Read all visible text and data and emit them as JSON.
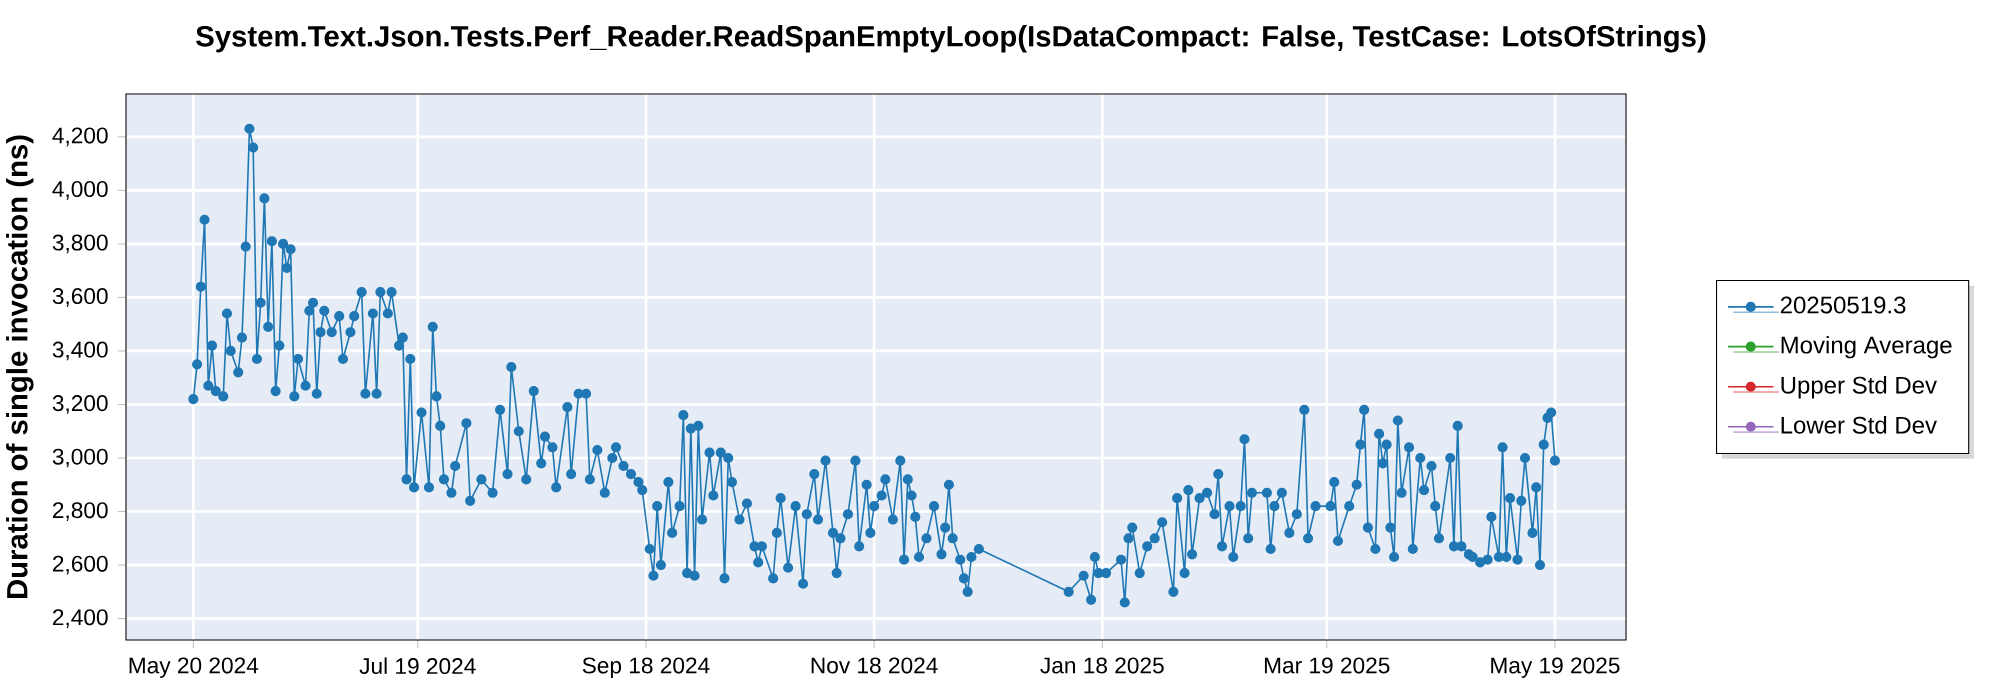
{
  "chart_data": {
    "type": "line",
    "title": "System.Text.Json.Tests.Perf_Reader.ReadSpanEmptyLoop(IsDataCompact: False, TestCase: LotsOfStrings)",
    "ylabel": "Duration of single invocation (ns)",
    "xlim": [
      "2024-05-02",
      "2025-06-07"
    ],
    "ylim": [
      2320,
      4360
    ],
    "xticks": [
      {
        "value": "2024-05-20",
        "label": "May 20 2024"
      },
      {
        "value": "2024-07-19",
        "label": "Jul 19 2024"
      },
      {
        "value": "2024-09-18",
        "label": "Sep 18 2024"
      },
      {
        "value": "2024-11-18",
        "label": "Nov 18 2024"
      },
      {
        "value": "2025-01-18",
        "label": "Jan 18 2025"
      },
      {
        "value": "2025-03-19",
        "label": "Mar 19 2025"
      },
      {
        "value": "2025-05-19",
        "label": "May 19 2025"
      }
    ],
    "yticks": [
      {
        "value": 2400,
        "label": "2,400"
      },
      {
        "value": 2600,
        "label": "2,600"
      },
      {
        "value": 2800,
        "label": "2,800"
      },
      {
        "value": 3000,
        "label": "3,000"
      },
      {
        "value": 3200,
        "label": "3,200"
      },
      {
        "value": 3400,
        "label": "3,400"
      },
      {
        "value": 3600,
        "label": "3,600"
      },
      {
        "value": 3800,
        "label": "3,800"
      },
      {
        "value": 4000,
        "label": "4,000"
      },
      {
        "value": 4200,
        "label": "4,200"
      }
    ],
    "grid": true,
    "legend": "right",
    "marker": "circle",
    "line_style": "solid",
    "series": [
      {
        "name": "20250519.3",
        "color": "#1f77b4",
        "x": [
          "2024-05-20",
          "2024-05-21",
          "2024-05-22",
          "2024-05-23",
          "2024-05-24",
          "2024-05-25",
          "2024-05-26",
          "2024-05-28",
          "2024-05-29",
          "2024-05-30",
          "2024-06-01",
          "2024-06-02",
          "2024-06-03",
          "2024-06-04",
          "2024-06-05",
          "2024-06-06",
          "2024-06-07",
          "2024-06-08",
          "2024-06-09",
          "2024-06-10",
          "2024-06-11",
          "2024-06-12",
          "2024-06-13",
          "2024-06-14",
          "2024-06-15",
          "2024-06-16",
          "2024-06-17",
          "2024-06-19",
          "2024-06-20",
          "2024-06-21",
          "2024-06-22",
          "2024-06-23",
          "2024-06-24",
          "2024-06-26",
          "2024-06-28",
          "2024-06-29",
          "2024-07-01",
          "2024-07-02",
          "2024-07-04",
          "2024-07-05",
          "2024-07-07",
          "2024-07-08",
          "2024-07-09",
          "2024-07-11",
          "2024-07-12",
          "2024-07-14",
          "2024-07-15",
          "2024-07-16",
          "2024-07-17",
          "2024-07-18",
          "2024-07-20",
          "2024-07-22",
          "2024-07-23",
          "2024-07-24",
          "2024-07-25",
          "2024-07-26",
          "2024-07-28",
          "2024-07-29",
          "2024-08-01",
          "2024-08-02",
          "2024-08-05",
          "2024-08-08",
          "2024-08-10",
          "2024-08-12",
          "2024-08-13",
          "2024-08-15",
          "2024-08-17",
          "2024-08-19",
          "2024-08-21",
          "2024-08-22",
          "2024-08-24",
          "2024-08-25",
          "2024-08-28",
          "2024-08-29",
          "2024-08-31",
          "2024-09-02",
          "2024-09-03",
          "2024-09-05",
          "2024-09-07",
          "2024-09-09",
          "2024-09-10",
          "2024-09-12",
          "2024-09-14",
          "2024-09-16",
          "2024-09-17",
          "2024-09-19",
          "2024-09-20",
          "2024-09-21",
          "2024-09-22",
          "2024-09-24",
          "2024-09-25",
          "2024-09-27",
          "2024-09-28",
          "2024-09-29",
          "2024-09-30",
          "2024-10-01",
          "2024-10-02",
          "2024-10-03",
          "2024-10-05",
          "2024-10-06",
          "2024-10-08",
          "2024-10-09",
          "2024-10-10",
          "2024-10-11",
          "2024-10-13",
          "2024-10-15",
          "2024-10-17",
          "2024-10-18",
          "2024-10-19",
          "2024-10-22",
          "2024-10-23",
          "2024-10-24",
          "2024-10-26",
          "2024-10-28",
          "2024-10-30",
          "2024-10-31",
          "2024-11-02",
          "2024-11-03",
          "2024-11-05",
          "2024-11-07",
          "2024-11-08",
          "2024-11-09",
          "2024-11-11",
          "2024-11-13",
          "2024-11-14",
          "2024-11-16",
          "2024-11-17",
          "2024-11-18",
          "2024-11-20",
          "2024-11-21",
          "2024-11-23",
          "2024-11-25",
          "2024-11-26",
          "2024-11-27",
          "2024-11-28",
          "2024-11-29",
          "2024-11-30",
          "2024-12-02",
          "2024-12-04",
          "2024-12-06",
          "2024-12-07",
          "2024-12-08",
          "2024-12-09",
          "2024-12-11",
          "2024-12-12",
          "2024-12-13",
          "2024-12-14",
          "2024-12-16",
          "2025-01-09",
          "2025-01-13",
          "2025-01-15",
          "2025-01-16",
          "2025-01-17",
          "2025-01-19",
          "2025-01-23",
          "2025-01-24",
          "2025-01-25",
          "2025-01-26",
          "2025-01-28",
          "2025-01-30",
          "2025-02-01",
          "2025-02-03",
          "2025-02-06",
          "2025-02-07",
          "2025-02-09",
          "2025-02-10",
          "2025-02-11",
          "2025-02-13",
          "2025-02-15",
          "2025-02-17",
          "2025-02-18",
          "2025-02-19",
          "2025-02-21",
          "2025-02-22",
          "2025-02-24",
          "2025-02-25",
          "2025-02-26",
          "2025-02-27",
          "2025-03-03",
          "2025-03-04",
          "2025-03-05",
          "2025-03-07",
          "2025-03-09",
          "2025-03-11",
          "2025-03-13",
          "2025-03-14",
          "2025-03-16",
          "2025-03-20",
          "2025-03-21",
          "2025-03-22",
          "2025-03-25",
          "2025-03-27",
          "2025-03-28",
          "2025-03-29",
          "2025-03-30",
          "2025-04-01",
          "2025-04-02",
          "2025-04-03",
          "2025-04-04",
          "2025-04-05",
          "2025-04-06",
          "2025-04-07",
          "2025-04-08",
          "2025-04-10",
          "2025-04-11",
          "2025-04-13",
          "2025-04-14",
          "2025-04-16",
          "2025-04-17",
          "2025-04-18",
          "2025-04-21",
          "2025-04-22",
          "2025-04-23",
          "2025-04-24",
          "2025-04-26",
          "2025-04-27",
          "2025-04-29",
          "2025-05-01",
          "2025-05-02",
          "2025-05-04",
          "2025-05-05",
          "2025-05-06",
          "2025-05-07",
          "2025-05-09",
          "2025-05-10",
          "2025-05-11",
          "2025-05-13",
          "2025-05-14",
          "2025-05-15",
          "2025-05-16",
          "2025-05-17",
          "2025-05-18",
          "2025-05-19"
        ],
        "values": [
          3220,
          3350,
          3640,
          3890,
          3270,
          3420,
          3250,
          3230,
          3540,
          3400,
          3320,
          3450,
          3790,
          4230,
          4160,
          3370,
          3580,
          3970,
          3490,
          3810,
          3250,
          3420,
          3800,
          3710,
          3780,
          3230,
          3370,
          3270,
          3550,
          3580,
          3240,
          3470,
          3550,
          3470,
          3530,
          3370,
          3470,
          3530,
          3620,
          3240,
          3540,
          3240,
          3620,
          3540,
          3620,
          3420,
          3450,
          2920,
          3370,
          2890,
          3170,
          2890,
          3490,
          3230,
          3120,
          2920,
          2870,
          2970,
          3130,
          2840,
          2920,
          2870,
          3180,
          2940,
          3340,
          3100,
          2920,
          3250,
          2980,
          3080,
          3040,
          2890,
          3190,
          2940,
          3240,
          3240,
          2920,
          3030,
          2870,
          3000,
          3040,
          2970,
          2940,
          2910,
          2880,
          2660,
          2560,
          2820,
          2600,
          2910,
          2720,
          2820,
          3160,
          2570,
          3110,
          2560,
          3120,
          2770,
          3020,
          2860,
          3020,
          2550,
          3000,
          2910,
          2770,
          2830,
          2670,
          2610,
          2670,
          2550,
          2720,
          2850,
          2590,
          2820,
          2530,
          2790,
          2940,
          2770,
          2990,
          2720,
          2570,
          2700,
          2790,
          2990,
          2670,
          2900,
          2720,
          2820,
          2860,
          2920,
          2770,
          2990,
          2620,
          2920,
          2860,
          2780,
          2630,
          2700,
          2820,
          2640,
          2740,
          2900,
          2700,
          2620,
          2550,
          2500,
          2630,
          2660,
          2500,
          2560,
          2470,
          2630,
          2570,
          2570,
          2620,
          2460,
          2700,
          2740,
          2570,
          2670,
          2700,
          2760,
          2500,
          2850,
          2570,
          2880,
          2640,
          2850,
          2870,
          2790,
          2940,
          2670,
          2820,
          2630,
          2820,
          3070,
          2700,
          2870,
          2870,
          2660,
          2820,
          2870,
          2720,
          2790,
          3180,
          2700,
          2820,
          2820,
          2910,
          2690,
          2820,
          2900,
          3050,
          3180,
          2740,
          2660,
          3090,
          2980,
          3050,
          2740,
          2630,
          3140,
          2870,
          3040,
          2660,
          3000,
          2880,
          2970,
          2820,
          2700,
          3000,
          2670,
          3120,
          2670,
          2640,
          2630,
          2610,
          2620,
          2780,
          2630,
          3040,
          2630,
          2850,
          2620,
          2840,
          3000,
          2720,
          2890,
          2600,
          3050,
          3150,
          3170,
          2990
        ]
      },
      {
        "name": "Moving Average",
        "color": "#2ca02c"
      },
      {
        "name": "Upper Std Dev",
        "color": "#d62728"
      },
      {
        "name": "Lower Std Dev",
        "color": "#9467bd"
      }
    ]
  }
}
